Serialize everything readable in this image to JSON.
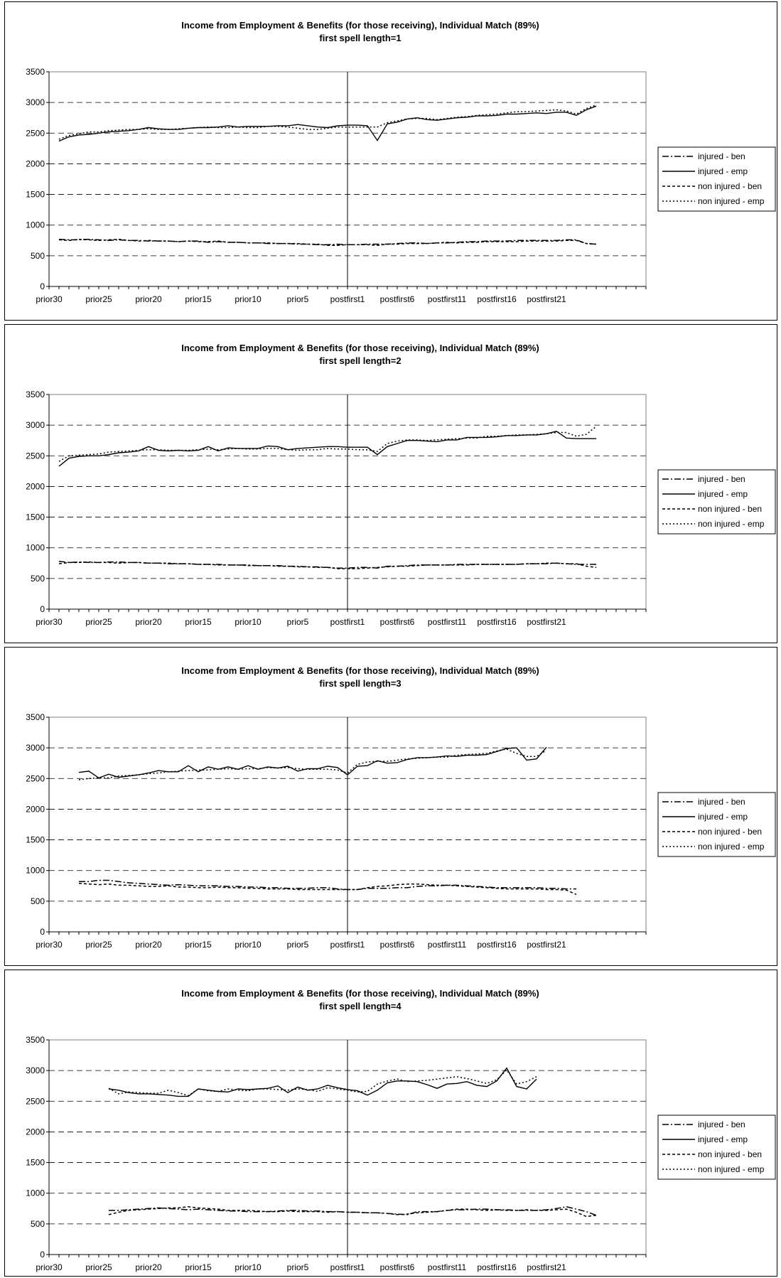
{
  "legend": [
    "injured - ben",
    "injured - emp",
    "non injured - ben",
    "non injured - emp"
  ],
  "chart_data": [
    {
      "type": "line",
      "title": "Income from Employment & Benefits (for those receiving), Individual Match (89%)",
      "subtitle": "first spell length=1",
      "xlabel": "",
      "ylabel": "",
      "x_tick_labels": [
        "prior30",
        "prior25",
        "prior20",
        "prior15",
        "prior10",
        "prior5",
        "postfirst1",
        "postfirst6",
        "postfirst11",
        "postfirst16",
        "postfirst21"
      ],
      "yticks": [
        0,
        500,
        1000,
        1500,
        2000,
        2500,
        3000,
        3500
      ],
      "ylim": [
        0,
        3500
      ],
      "grid": "horizontal dashed",
      "legend_position": "right",
      "series": [
        {
          "name": "injured - ben",
          "style": "dash-dot",
          "start": 1,
          "values": [
            770,
            760,
            760,
            770,
            760,
            750,
            760,
            750,
            750,
            740,
            740,
            740,
            730,
            740,
            740,
            720,
            730,
            720,
            720,
            710,
            710,
            700,
            700,
            700,
            690,
            690,
            680,
            680,
            690,
            680,
            680,
            690,
            690,
            690,
            700,
            710,
            710,
            700,
            710,
            710,
            720,
            730,
            730,
            740,
            740,
            740,
            750,
            750,
            750,
            750,
            750,
            760,
            760,
            700,
            690
          ]
        },
        {
          "name": "injured - emp",
          "style": "solid",
          "start": 1,
          "values": [
            2370,
            2440,
            2470,
            2480,
            2500,
            2520,
            2530,
            2540,
            2560,
            2590,
            2570,
            2560,
            2560,
            2580,
            2590,
            2590,
            2600,
            2620,
            2600,
            2610,
            2610,
            2610,
            2620,
            2620,
            2640,
            2620,
            2600,
            2590,
            2620,
            2630,
            2630,
            2620,
            2380,
            2650,
            2680,
            2730,
            2750,
            2720,
            2710,
            2730,
            2750,
            2760,
            2780,
            2780,
            2790,
            2810,
            2810,
            2820,
            2830,
            2820,
            2840,
            2840,
            2790,
            2880,
            2940
          ]
        },
        {
          "name": "non injured - ben",
          "style": "short-dash",
          "start": 1,
          "values": [
            760,
            750,
            770,
            760,
            750,
            760,
            770,
            750,
            740,
            750,
            740,
            740,
            730,
            740,
            730,
            730,
            740,
            720,
            720,
            710,
            710,
            710,
            700,
            700,
            700,
            690,
            690,
            670,
            670,
            680,
            680,
            680,
            670,
            690,
            690,
            700,
            700,
            700,
            710,
            720,
            710,
            720,
            720,
            730,
            730,
            730,
            730,
            740,
            740,
            740,
            740,
            750,
            750,
            700,
            690
          ]
        },
        {
          "name": "non injured - emp",
          "style": "dot",
          "start": 1,
          "values": [
            2400,
            2460,
            2490,
            2520,
            2520,
            2540,
            2550,
            2560,
            2560,
            2570,
            2560,
            2560,
            2570,
            2580,
            2590,
            2600,
            2590,
            2590,
            2600,
            2590,
            2590,
            2610,
            2610,
            2600,
            2580,
            2560,
            2560,
            2580,
            2600,
            2600,
            2600,
            2600,
            2600,
            2670,
            2700,
            2730,
            2740,
            2740,
            2720,
            2740,
            2760,
            2770,
            2790,
            2800,
            2810,
            2830,
            2850,
            2850,
            2860,
            2870,
            2880,
            2860,
            2810,
            2900,
            2960
          ]
        }
      ]
    },
    {
      "type": "line",
      "title": "Income from Employment & Benefits (for those receiving), Individual Match (89%)",
      "subtitle": "first spell length=2",
      "xlabel": "",
      "ylabel": "",
      "x_tick_labels": [
        "prior30",
        "prior25",
        "prior20",
        "prior15",
        "prior10",
        "prior5",
        "postfirst1",
        "postfirst6",
        "postfirst11",
        "postfirst16",
        "postfirst21"
      ],
      "yticks": [
        0,
        500,
        1000,
        1500,
        2000,
        2500,
        3000,
        3500
      ],
      "ylim": [
        0,
        3500
      ],
      "grid": "horizontal dashed",
      "legend_position": "right",
      "series": [
        {
          "name": "injured - ben",
          "style": "dash-dot",
          "start": 1,
          "values": [
            780,
            760,
            770,
            760,
            760,
            770,
            770,
            760,
            760,
            750,
            750,
            740,
            740,
            740,
            730,
            730,
            730,
            720,
            720,
            720,
            710,
            710,
            710,
            700,
            700,
            690,
            690,
            680,
            670,
            670,
            680,
            680,
            670,
            700,
            700,
            710,
            720,
            720,
            720,
            720,
            730,
            730,
            730,
            730,
            730,
            730,
            730,
            740,
            740,
            740,
            750,
            740,
            730,
            730,
            730
          ]
        },
        {
          "name": "injured - emp",
          "style": "solid",
          "start": 1,
          "values": [
            2330,
            2460,
            2490,
            2500,
            2500,
            2520,
            2550,
            2560,
            2580,
            2650,
            2590,
            2580,
            2590,
            2580,
            2590,
            2650,
            2580,
            2630,
            2620,
            2620,
            2620,
            2660,
            2650,
            2600,
            2620,
            2630,
            2640,
            2650,
            2650,
            2640,
            2640,
            2640,
            2520,
            2650,
            2700,
            2750,
            2750,
            2740,
            2730,
            2760,
            2760,
            2800,
            2800,
            2800,
            2810,
            2830,
            2830,
            2840,
            2840,
            2860,
            2900,
            2790,
            2780,
            2780,
            2780
          ]
        },
        {
          "name": "non injured - ben",
          "style": "short-dash",
          "start": 1,
          "values": [
            740,
            760,
            760,
            770,
            760,
            760,
            750,
            760,
            760,
            750,
            750,
            750,
            740,
            740,
            730,
            730,
            720,
            720,
            720,
            710,
            710,
            710,
            700,
            700,
            690,
            690,
            680,
            680,
            660,
            660,
            660,
            670,
            680,
            690,
            700,
            700,
            710,
            720,
            720,
            720,
            720,
            720,
            730,
            730,
            730,
            730,
            730,
            740,
            740,
            750,
            750,
            740,
            740,
            700,
            680
          ]
        },
        {
          "name": "non injured - emp",
          "style": "dot",
          "start": 1,
          "values": [
            2410,
            2500,
            2510,
            2520,
            2530,
            2560,
            2570,
            2580,
            2590,
            2600,
            2600,
            2590,
            2590,
            2590,
            2600,
            2610,
            2600,
            2610,
            2620,
            2610,
            2610,
            2620,
            2620,
            2600,
            2590,
            2600,
            2600,
            2620,
            2610,
            2610,
            2600,
            2600,
            2570,
            2700,
            2740,
            2760,
            2760,
            2750,
            2760,
            2770,
            2780,
            2790,
            2790,
            2820,
            2820,
            2830,
            2840,
            2840,
            2850,
            2860,
            2880,
            2880,
            2820,
            2850,
            2980
          ]
        }
      ]
    },
    {
      "type": "line",
      "title": "Income from Employment & Benefits (for those receiving), Individual Match (89%)",
      "subtitle": "first spell length=3",
      "xlabel": "",
      "ylabel": "",
      "x_tick_labels": [
        "prior30",
        "prior25",
        "prior20",
        "prior15",
        "prior10",
        "prior5",
        "postfirst1",
        "postfirst6",
        "postfirst11",
        "postfirst16",
        "postfirst21"
      ],
      "yticks": [
        0,
        500,
        1000,
        1500,
        2000,
        2500,
        3000,
        3500
      ],
      "ylim": [
        0,
        3500
      ],
      "grid": "horizontal dashed",
      "legend_position": "right",
      "series": [
        {
          "name": "injured - ben",
          "style": "dash-dot",
          "start": 3,
          "values": [
            820,
            820,
            840,
            840,
            820,
            800,
            790,
            780,
            770,
            760,
            770,
            760,
            750,
            750,
            750,
            740,
            740,
            730,
            730,
            720,
            720,
            710,
            710,
            710,
            720,
            720,
            700,
            690,
            690,
            710,
            710,
            710,
            720,
            720,
            740,
            750,
            750,
            760,
            760,
            750,
            740,
            730,
            720,
            720,
            720,
            720,
            720,
            710,
            710,
            700,
            700
          ]
        },
        {
          "name": "injured - emp",
          "style": "solid",
          "start": 3,
          "values": [
            2600,
            2620,
            2510,
            2570,
            2520,
            2540,
            2560,
            2590,
            2630,
            2610,
            2610,
            2710,
            2610,
            2690,
            2650,
            2690,
            2650,
            2710,
            2650,
            2690,
            2670,
            2700,
            2620,
            2660,
            2660,
            2700,
            2680,
            2560,
            2700,
            2710,
            2790,
            2750,
            2760,
            2810,
            2840,
            2840,
            2850,
            2870,
            2860,
            2880,
            2880,
            2890,
            2940,
            2990,
            3000,
            2800,
            2820,
            3010
          ]
        },
        {
          "name": "non injured - ben",
          "style": "short-dash",
          "start": 3,
          "values": [
            790,
            780,
            770,
            780,
            760,
            760,
            750,
            740,
            740,
            750,
            730,
            730,
            720,
            720,
            730,
            720,
            720,
            710,
            710,
            700,
            700,
            700,
            690,
            690,
            690,
            690,
            690,
            690,
            690,
            720,
            740,
            750,
            770,
            780,
            780,
            770,
            760,
            760,
            750,
            740,
            730,
            720,
            710,
            700,
            700,
            700,
            700,
            690,
            690,
            680,
            610
          ]
        },
        {
          "name": "non injured - emp",
          "style": "dot",
          "start": 3,
          "values": [
            2480,
            2500,
            2510,
            2510,
            2540,
            2550,
            2560,
            2580,
            2590,
            2610,
            2620,
            2630,
            2640,
            2640,
            2650,
            2660,
            2650,
            2660,
            2660,
            2680,
            2670,
            2680,
            2660,
            2650,
            2650,
            2650,
            2640,
            2590,
            2730,
            2770,
            2780,
            2780,
            2800,
            2820,
            2830,
            2840,
            2850,
            2850,
            2880,
            2890,
            2900,
            2910,
            2950,
            2980,
            2910,
            2860,
            2860,
            2960
          ]
        }
      ]
    },
    {
      "type": "line",
      "title": "Income from Employment & Benefits (for those receiving), Individual Match (89%)",
      "subtitle": "first spell length=4",
      "xlabel": "",
      "ylabel": "",
      "x_tick_labels": [
        "prior30",
        "prior25",
        "prior20",
        "prior15",
        "prior10",
        "prior5",
        "postfirst1",
        "postfirst6",
        "postfirst11",
        "postfirst16",
        "postfirst21"
      ],
      "yticks": [
        0,
        500,
        1000,
        1500,
        2000,
        2500,
        3000,
        3500
      ],
      "ylim": [
        0,
        3500
      ],
      "grid": "horizontal dashed",
      "legend_position": "right",
      "series": [
        {
          "name": "injured - ben",
          "style": "dash-dot",
          "start": 6,
          "values": [
            720,
            720,
            730,
            740,
            750,
            760,
            750,
            740,
            730,
            740,
            730,
            720,
            710,
            710,
            700,
            700,
            700,
            710,
            720,
            720,
            710,
            710,
            700,
            700,
            690,
            690,
            680,
            680,
            670,
            660,
            650,
            700,
            700,
            700,
            720,
            730,
            730,
            740,
            740,
            730,
            730,
            720,
            720,
            720,
            730,
            750,
            780,
            740,
            700,
            640
          ]
        },
        {
          "name": "injured - emp",
          "style": "solid",
          "start": 6,
          "values": [
            2700,
            2680,
            2640,
            2620,
            2620,
            2610,
            2600,
            2580,
            2580,
            2700,
            2680,
            2660,
            2650,
            2700,
            2690,
            2700,
            2710,
            2750,
            2640,
            2730,
            2680,
            2700,
            2760,
            2720,
            2690,
            2670,
            2600,
            2680,
            2800,
            2830,
            2830,
            2820,
            2770,
            2710,
            2780,
            2790,
            2820,
            2760,
            2740,
            2830,
            3040,
            2740,
            2700,
            2860
          ]
        },
        {
          "name": "non injured - ben",
          "style": "short-dash",
          "start": 6,
          "values": [
            650,
            690,
            720,
            730,
            740,
            750,
            760,
            760,
            780,
            760,
            750,
            740,
            720,
            720,
            720,
            710,
            700,
            700,
            710,
            700,
            700,
            700,
            690,
            700,
            690,
            690,
            680,
            680,
            670,
            650,
            660,
            680,
            690,
            700,
            720,
            740,
            740,
            730,
            720,
            730,
            720,
            720,
            730,
            720,
            720,
            730,
            740,
            690,
            620,
            640
          ]
        },
        {
          "name": "non injured - emp",
          "style": "dot",
          "start": 6,
          "values": [
            2710,
            2620,
            2650,
            2640,
            2630,
            2630,
            2680,
            2640,
            2590,
            2700,
            2670,
            2660,
            2700,
            2680,
            2670,
            2700,
            2700,
            2690,
            2680,
            2700,
            2690,
            2660,
            2720,
            2700,
            2680,
            2650,
            2660,
            2780,
            2830,
            2860,
            2820,
            2830,
            2840,
            2860,
            2880,
            2900,
            2870,
            2830,
            2790,
            2850,
            3010,
            2780,
            2820,
            2900
          ]
        }
      ]
    }
  ]
}
